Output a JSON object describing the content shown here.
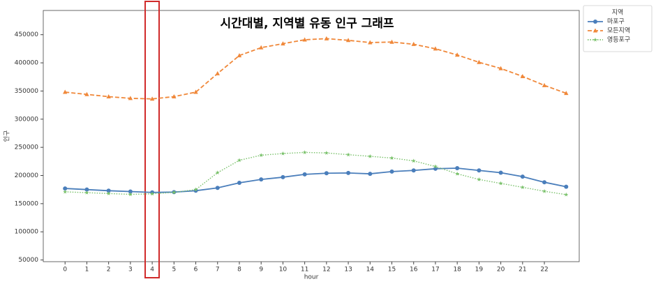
{
  "chart_data": {
    "type": "line",
    "title": "시간대별, 지역별 유동 인구 그래프",
    "x_label": "hour",
    "y_label": "인구",
    "legend_title": "지역",
    "legend": "outside upper right",
    "x": [
      0,
      1,
      2,
      3,
      4,
      5,
      6,
      7,
      8,
      9,
      10,
      11,
      12,
      13,
      14,
      15,
      16,
      17,
      18,
      19,
      20,
      21,
      22,
      23
    ],
    "xlim": [
      -1.0,
      23.6
    ],
    "xticks": [
      0,
      1,
      2,
      3,
      4,
      5,
      6,
      7,
      8,
      9,
      10,
      11,
      12,
      13,
      14,
      15,
      16,
      17,
      18,
      19,
      20,
      21,
      22
    ],
    "ylim": [
      47000,
      493000
    ],
    "yticks": [
      50000,
      100000,
      150000,
      200000,
      250000,
      300000,
      350000,
      400000,
      450000
    ],
    "series": [
      {
        "name": "마포구",
        "color": "#4a7ebb",
        "marker": "circle",
        "linestyle": "solid",
        "values": [
          177000,
          175000,
          173000,
          171500,
          170000,
          170500,
          173000,
          178000,
          187000,
          193000,
          197000,
          202000,
          204000,
          204500,
          203000,
          207000,
          209000,
          212000,
          213000,
          209000,
          205000,
          198000,
          188000,
          180000
        ]
      },
      {
        "name": "모든지역",
        "color": "#f0883a",
        "marker": "triangle",
        "linestyle": "dashed",
        "values": [
          348000,
          344000,
          340000,
          337000,
          336000,
          340000,
          348000,
          381000,
          413000,
          427000,
          434000,
          441000,
          443000,
          440000,
          436000,
          437000,
          433000,
          425000,
          414000,
          401000,
          390000,
          376000,
          360000,
          346000
        ]
      },
      {
        "name": "영등포구",
        "color": "#79c16a",
        "marker": "star",
        "linestyle": "dotted",
        "values": [
          171000,
          169500,
          168000,
          166500,
          167500,
          170000,
          175000,
          205000,
          227000,
          236000,
          239000,
          241000,
          240000,
          237000,
          234000,
          231000,
          226000,
          216000,
          203000,
          193000,
          186000,
          179000,
          172000,
          166000
        ]
      }
    ]
  }
}
